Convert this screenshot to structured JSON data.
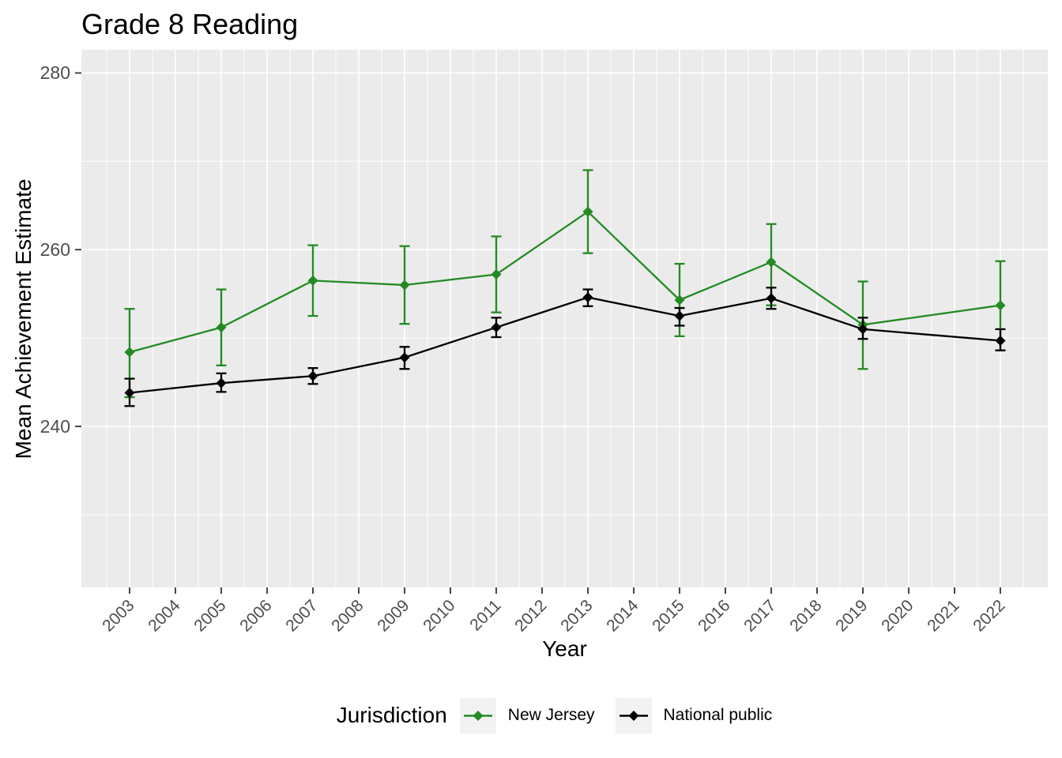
{
  "title": "Grade 8 Reading",
  "axes": {
    "x_label": "Year",
    "y_label": "Mean Achievement Estimate",
    "y_tick_labels": [
      "240",
      "260",
      "280"
    ]
  },
  "legend": {
    "title": "Jurisdiction",
    "items": [
      {
        "label": "New Jersey",
        "color": "#228B22"
      },
      {
        "label": "National public",
        "color": "#000000"
      }
    ]
  },
  "colors": {
    "panel_background": "#EBEBEB",
    "gridline": "#FFFFFF",
    "tick_mark": "#333333",
    "tick_label": "#4D4D4D",
    "new_jersey": "#228B22",
    "national_public": "#000000"
  },
  "chart_data": {
    "type": "line",
    "title": "Grade 8 Reading",
    "xlabel": "Year",
    "ylabel": "Mean Achievement Estimate",
    "x": [
      2003,
      2005,
      2007,
      2009,
      2011,
      2013,
      2015,
      2017,
      2019,
      2022
    ],
    "series": [
      {
        "name": "New Jersey",
        "color": "#228B22",
        "values": [
          248.4,
          251.2,
          256.5,
          256.0,
          257.2,
          264.3,
          254.3,
          258.6,
          251.5,
          253.7
        ],
        "ci_low": [
          243.3,
          246.9,
          252.5,
          251.6,
          252.9,
          259.6,
          250.2,
          253.7,
          246.5,
          248.6
        ],
        "ci_high": [
          253.3,
          255.5,
          260.5,
          260.4,
          261.5,
          269.0,
          258.4,
          262.9,
          256.4,
          258.7
        ]
      },
      {
        "name": "National public",
        "color": "#000000",
        "values": [
          243.8,
          244.9,
          245.7,
          247.8,
          251.2,
          254.6,
          252.5,
          254.5,
          251.0,
          249.7
        ],
        "ci_low": [
          242.3,
          243.9,
          244.8,
          246.5,
          250.1,
          253.6,
          251.4,
          253.3,
          249.9,
          248.6
        ],
        "ci_high": [
          245.4,
          246.0,
          246.6,
          249.0,
          252.3,
          255.5,
          253.4,
          255.7,
          252.3,
          251.0
        ]
      }
    ],
    "error_bars": true,
    "x_axis_ticks": [
      2003,
      2004,
      2005,
      2006,
      2007,
      2008,
      2009,
      2010,
      2011,
      2012,
      2013,
      2014,
      2015,
      2016,
      2017,
      2018,
      2019,
      2020,
      2021,
      2022
    ],
    "y_major_ticks": [
      240,
      260,
      280
    ],
    "y_minor_gridlines": [
      230,
      250,
      270
    ],
    "ylim": [
      222,
      282.5
    ],
    "grid": true,
    "legend_position": "bottom",
    "legend_title": "Jurisdiction"
  }
}
